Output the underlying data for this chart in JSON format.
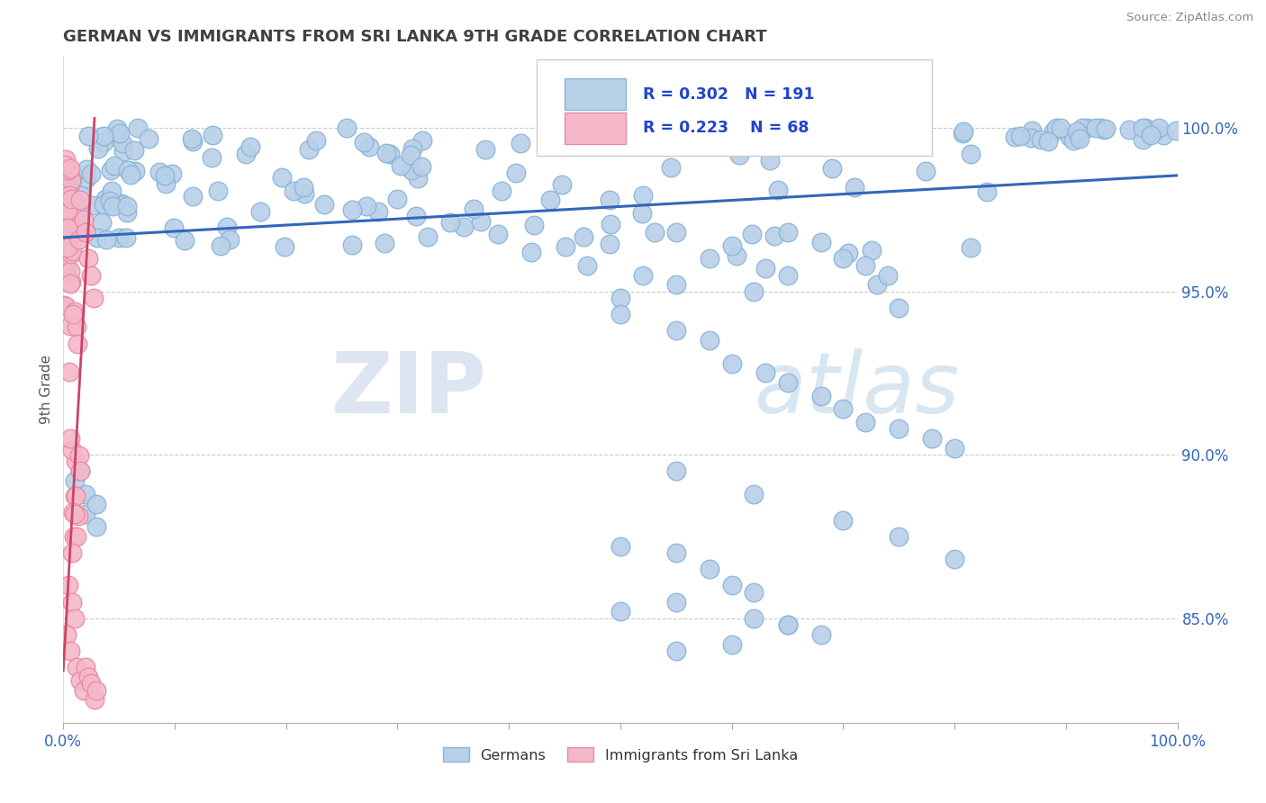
{
  "title": "GERMAN VS IMMIGRANTS FROM SRI LANKA 9TH GRADE CORRELATION CHART",
  "source": "Source: ZipAtlas.com",
  "ylabel": "9th Grade",
  "legend_label1": "Germans",
  "legend_label2": "Immigrants from Sri Lanka",
  "R_blue": 0.302,
  "N_blue": 191,
  "R_pink": 0.223,
  "N_pink": 68,
  "blue_fill": "#b8d0e8",
  "blue_edge": "#8ab4d8",
  "pink_fill": "#f4b8c8",
  "pink_edge": "#e88aa8",
  "trend_blue": "#3366bb",
  "trend_pink": "#cc4466",
  "background": "#ffffff",
  "grid_color": "#cccccc",
  "title_color": "#404040",
  "legend_text_color": "#2244cc",
  "watermark_zip": "ZIP",
  "watermark_atlas": "atlas",
  "xlim": [
    0.0,
    1.0
  ],
  "ylim": [
    0.818,
    1.022
  ],
  "ytick_values": [
    0.85,
    0.9,
    0.95,
    1.0
  ],
  "ytick_labels": [
    "85.0%",
    "90.0%",
    "95.0%",
    "100.0%"
  ],
  "blue_trend_x": [
    0.0,
    1.0
  ],
  "blue_trend_y": [
    0.9665,
    0.9855
  ],
  "pink_trend_x": [
    0.0,
    0.028
  ],
  "pink_trend_y": [
    0.834,
    1.003
  ]
}
